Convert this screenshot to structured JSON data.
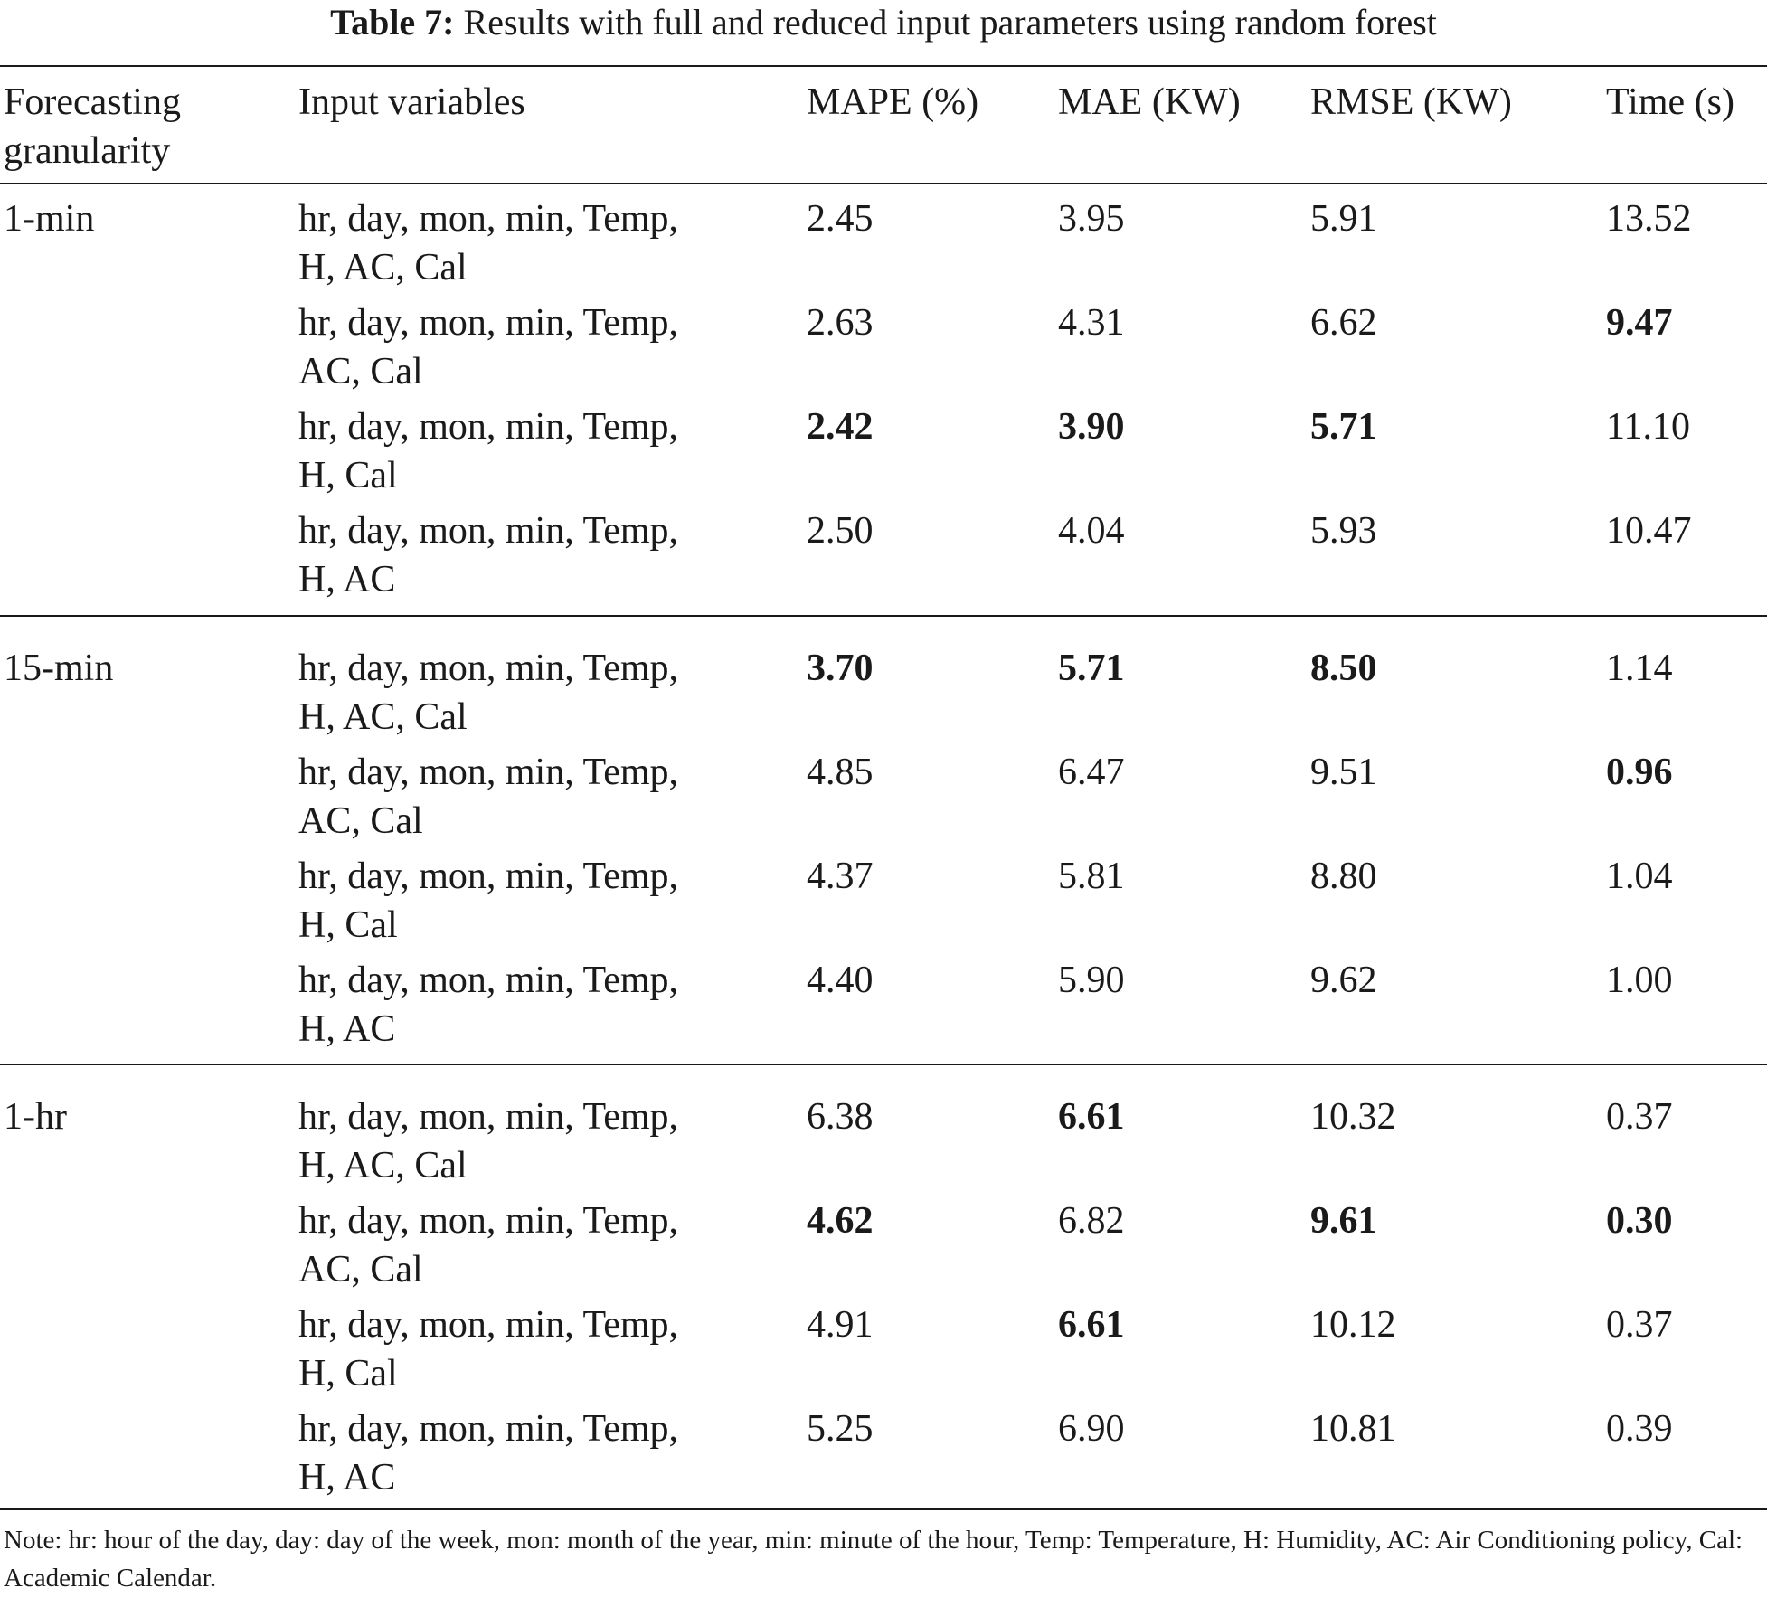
{
  "caption": {
    "label": "Table 7:",
    "text": "Results with full and reduced input parameters using random forest"
  },
  "headers": {
    "granularity_line1": "Forecasting",
    "granularity_line2": "granularity",
    "input_variables": "Input variables",
    "mape": "MAPE (%)",
    "mae": "MAE (KW)",
    "rmse": "RMSE (KW)",
    "time": "Time (s)"
  },
  "groups": [
    {
      "granularity": "1-min",
      "rows": [
        {
          "vars1": "hr, day, mon, min, Temp,",
          "vars2": "H, AC, Cal",
          "mape": "2.45",
          "mae": "3.95",
          "rmse": "5.91",
          "time": "13.52"
        },
        {
          "vars1": "hr, day, mon, min, Temp,",
          "vars2": "AC, Cal",
          "mape": "2.63",
          "mae": "4.31",
          "rmse": "6.62",
          "time": "9.47"
        },
        {
          "vars1": "hr, day, mon, min, Temp,",
          "vars2": "H, Cal",
          "mape": "2.42",
          "mae": "3.90",
          "rmse": "5.71",
          "time": "11.10"
        },
        {
          "vars1": "hr, day, mon, min, Temp,",
          "vars2": "H, AC",
          "mape": "2.50",
          "mae": "4.04",
          "rmse": "5.93",
          "time": "10.47"
        }
      ]
    },
    {
      "granularity": "15-min",
      "rows": [
        {
          "vars1": "hr, day, mon, min, Temp,",
          "vars2": "H, AC, Cal",
          "mape": "3.70",
          "mae": "5.71",
          "rmse": "8.50",
          "time": "1.14"
        },
        {
          "vars1": "hr, day, mon, min, Temp,",
          "vars2": "AC, Cal",
          "mape": "4.85",
          "mae": "6.47",
          "rmse": "9.51",
          "time": "0.96"
        },
        {
          "vars1": "hr, day, mon, min, Temp,",
          "vars2": "H, Cal",
          "mape": "4.37",
          "mae": "5.81",
          "rmse": "8.80",
          "time": "1.04"
        },
        {
          "vars1": "hr, day, mon, min, Temp,",
          "vars2": "H, AC",
          "mape": "4.40",
          "mae": "5.90",
          "rmse": "9.62",
          "time": "1.00"
        }
      ]
    },
    {
      "granularity": "1-hr",
      "rows": [
        {
          "vars1": "hr, day, mon, min, Temp,",
          "vars2": "H, AC, Cal",
          "mape": "6.38",
          "mae": "6.61",
          "rmse": "10.32",
          "time": "0.37"
        },
        {
          "vars1": "hr, day, mon, min, Temp,",
          "vars2": "AC, Cal",
          "mape": "4.62",
          "mae": "6.82",
          "rmse": "9.61",
          "time": "0.30"
        },
        {
          "vars1": "hr, day, mon, min, Temp,",
          "vars2": "H, Cal",
          "mape": "4.91",
          "mae": "6.61",
          "rmse": "10.12",
          "time": "0.37"
        },
        {
          "vars1": "hr, day, mon, min, Temp,",
          "vars2": "H, AC",
          "mape": "5.25",
          "mae": "6.90",
          "rmse": "10.81",
          "time": "0.39"
        }
      ]
    }
  ],
  "note": "Note: hr: hour of the day, day: day of the week, mon: month of the year, min: minute of the hour, Temp: Temperature, H: Humidity, AC: Air Conditioning policy, Cal: Academic Calendar."
}
